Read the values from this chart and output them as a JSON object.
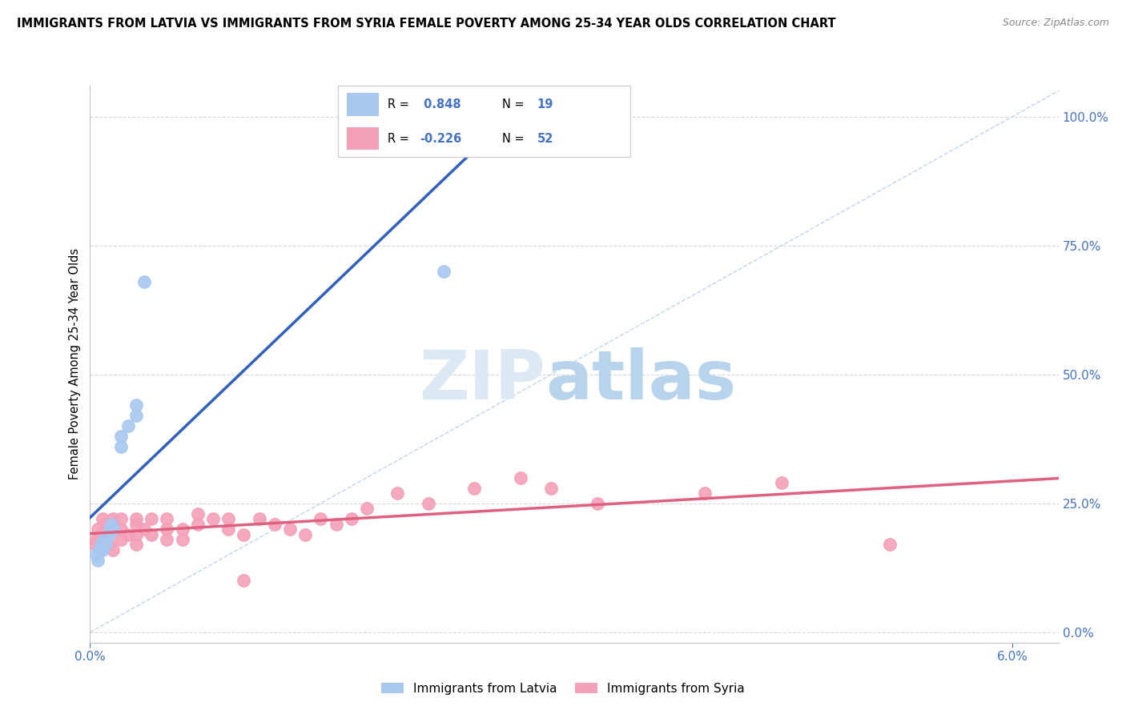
{
  "title": "IMMIGRANTS FROM LATVIA VS IMMIGRANTS FROM SYRIA FEMALE POVERTY AMONG 25-34 YEAR OLDS CORRELATION CHART",
  "source": "Source: ZipAtlas.com",
  "ylabel": "Female Poverty Among 25-34 Year Olds",
  "ytick_labels": [
    "0.0%",
    "25.0%",
    "50.0%",
    "75.0%",
    "100.0%"
  ],
  "ytick_values": [
    0.0,
    0.25,
    0.5,
    0.75,
    1.0
  ],
  "xtick_labels": [
    "0.0%",
    "6.0%"
  ],
  "xtick_values": [
    0.0,
    0.06
  ],
  "xlim": [
    0.0,
    0.063
  ],
  "ylim": [
    -0.02,
    1.06
  ],
  "legend_latvia": "Immigrants from Latvia",
  "legend_syria": "Immigrants from Syria",
  "R_latvia": 0.848,
  "N_latvia": 19,
  "R_syria": -0.226,
  "N_syria": 52,
  "color_latvia": "#a8c8f0",
  "color_syria": "#f4a0b8",
  "line_latvia": "#3060c0",
  "line_syria": "#e06080",
  "ref_line_color": "#b0c8e8",
  "grid_color": "#d8d8d8",
  "watermark_zip_color": "#dce8f4",
  "watermark_atlas_color": "#b8d4ec",
  "latvia_x": [
    0.0004,
    0.0005,
    0.0006,
    0.0007,
    0.0008,
    0.0009,
    0.001,
    0.0012,
    0.0013,
    0.0014,
    0.0015,
    0.002,
    0.002,
    0.0025,
    0.003,
    0.003,
    0.0035,
    0.022,
    0.023
  ],
  "latvia_y": [
    0.15,
    0.14,
    0.16,
    0.17,
    0.16,
    0.18,
    0.17,
    0.19,
    0.2,
    0.21,
    0.2,
    0.36,
    0.38,
    0.4,
    0.42,
    0.44,
    0.68,
    0.95,
    0.7
  ],
  "syria_x": [
    0.0003,
    0.0004,
    0.0005,
    0.0006,
    0.0007,
    0.0008,
    0.001,
    0.001,
    0.0012,
    0.0013,
    0.0015,
    0.0015,
    0.002,
    0.002,
    0.002,
    0.0025,
    0.003,
    0.003,
    0.003,
    0.003,
    0.0035,
    0.004,
    0.004,
    0.005,
    0.005,
    0.005,
    0.006,
    0.006,
    0.007,
    0.007,
    0.008,
    0.009,
    0.009,
    0.01,
    0.01,
    0.011,
    0.012,
    0.013,
    0.014,
    0.015,
    0.016,
    0.017,
    0.018,
    0.02,
    0.022,
    0.025,
    0.028,
    0.03,
    0.033,
    0.04,
    0.045,
    0.052
  ],
  "syria_y": [
    0.17,
    0.18,
    0.2,
    0.16,
    0.19,
    0.22,
    0.18,
    0.21,
    0.17,
    0.2,
    0.16,
    0.22,
    0.18,
    0.2,
    0.22,
    0.19,
    0.17,
    0.19,
    0.21,
    0.22,
    0.2,
    0.19,
    0.22,
    0.18,
    0.2,
    0.22,
    0.18,
    0.2,
    0.21,
    0.23,
    0.22,
    0.2,
    0.22,
    0.19,
    0.1,
    0.22,
    0.21,
    0.2,
    0.19,
    0.22,
    0.21,
    0.22,
    0.24,
    0.27,
    0.25,
    0.28,
    0.3,
    0.28,
    0.25,
    0.27,
    0.29,
    0.17
  ]
}
